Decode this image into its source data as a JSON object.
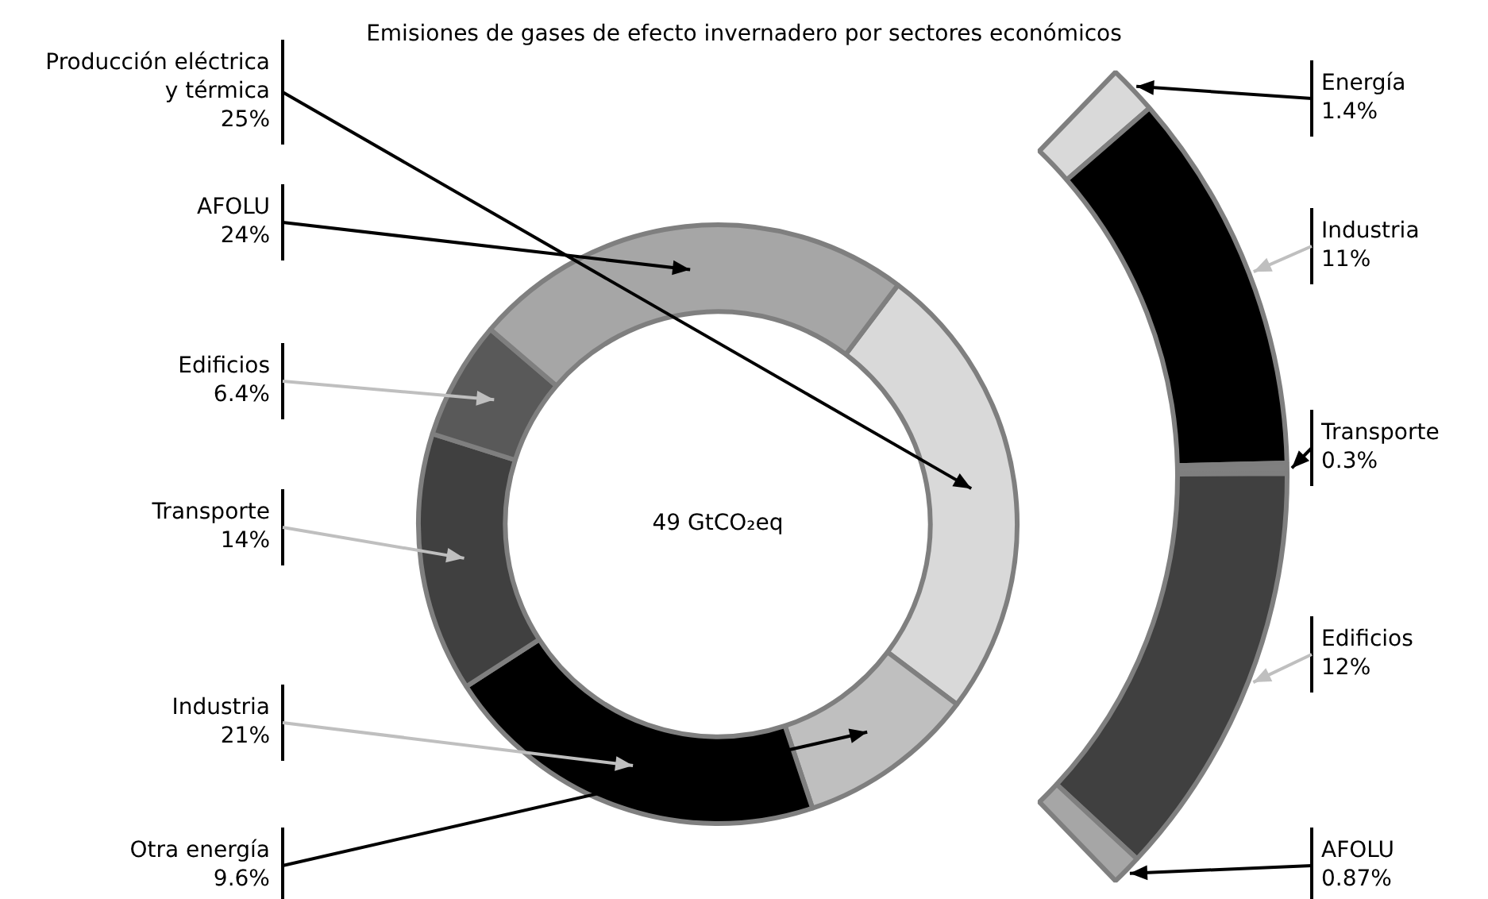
{
  "chart_data": [
    {
      "type": "donut",
      "title": "Emisiones de gases de efecto invernadero por sectores económicos",
      "categories": [
        "Producción eléctrica y térmica",
        "Otra energía",
        "Industria",
        "Transporte",
        "Edificios",
        "AFOLU"
      ],
      "values": [
        25,
        9.6,
        21,
        14,
        6.4,
        24
      ],
      "colors": [
        "#d9d9d9",
        "#bfbfbf",
        "#000000",
        "#404040",
        "#595959",
        "#a6a6a6"
      ],
      "value_labels": [
        "25%",
        "9.6%",
        "21%",
        "14%",
        "6.4%",
        "24%"
      ],
      "annotations": [
        "49 GtCO₂eq"
      ]
    },
    {
      "type": "donut",
      "categories": [
        "Energía",
        "Industria",
        "Transporte",
        "Edificios",
        "AFOLU"
      ],
      "values": [
        1.4,
        11,
        0.3,
        12,
        0.87
      ],
      "colors": [
        "#d9d9d9",
        "#000000",
        "#808080",
        "#404040",
        "#a6a6a6"
      ],
      "value_labels": [
        "1.4%",
        "11%",
        "0.3%",
        "12%",
        "0.87%"
      ]
    }
  ]
}
